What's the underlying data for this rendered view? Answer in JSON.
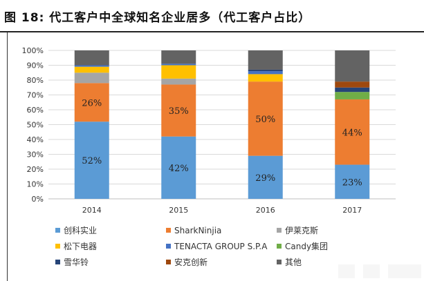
{
  "figure": {
    "title": "图 18: 代工客户中全球知名企业居多（代工客户占比）"
  },
  "chart_data": {
    "type": "bar",
    "stacked": true,
    "categories": [
      "2014",
      "2015",
      "2016",
      "2017"
    ],
    "ylim": [
      0,
      100
    ],
    "yticks": [
      "0%",
      "10%",
      "20%",
      "30%",
      "40%",
      "50%",
      "60%",
      "70%",
      "80%",
      "90%",
      "100%"
    ],
    "grid": true,
    "legend_position": "bottom",
    "series": [
      {
        "name": "创科实业",
        "color": "#5B9BD5",
        "values": [
          52,
          42,
          29,
          23
        ],
        "labels": [
          "52%",
          "42%",
          "29%",
          "23%"
        ]
      },
      {
        "name": "SharkNinjia",
        "color": "#ED7D31",
        "values": [
          26,
          35,
          50,
          44
        ],
        "labels": [
          "26%",
          "35%",
          "50%",
          "44%"
        ]
      },
      {
        "name": "伊莱克斯",
        "color": "#A5A5A5",
        "values": [
          7,
          4,
          0,
          0
        ]
      },
      {
        "name": "松下电器",
        "color": "#FFC000",
        "values": [
          4,
          9,
          5,
          0
        ]
      },
      {
        "name": "TENACTA GROUP S.P.A",
        "color": "#4472C4",
        "values": [
          1,
          1,
          2,
          0
        ]
      },
      {
        "name": "Candy集团",
        "color": "#70AD47",
        "values": [
          0,
          0,
          0,
          5
        ]
      },
      {
        "name": "雪华铃",
        "color": "#264478",
        "values": [
          0,
          0,
          1,
          3
        ]
      },
      {
        "name": "安克创新",
        "color": "#9E480E",
        "values": [
          0,
          0,
          0,
          4
        ]
      },
      {
        "name": "其他",
        "color": "#636363",
        "values": [
          10,
          9,
          13,
          21
        ]
      }
    ]
  }
}
